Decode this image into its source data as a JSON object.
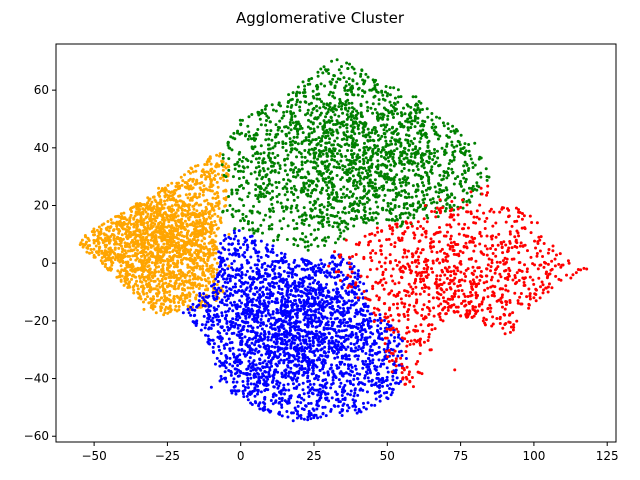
{
  "chart_data": {
    "type": "scatter",
    "title": "Agglomerative Cluster",
    "xlabel": "",
    "ylabel": "",
    "xlim": [
      -63,
      128
    ],
    "ylim": [
      -62,
      76
    ],
    "xticks": [
      "−50",
      "−25",
      "0",
      "25",
      "50",
      "75",
      "100",
      "125"
    ],
    "xtick_values": [
      -50,
      -25,
      0,
      25,
      50,
      75,
      100,
      125
    ],
    "yticks": [
      "−60",
      "−40",
      "−20",
      "0",
      "20",
      "40",
      "60"
    ],
    "ytick_values": [
      -60,
      -40,
      -20,
      0,
      20,
      40,
      60
    ],
    "grid": false,
    "legend": "none",
    "marker_size": 1.5,
    "series": [
      {
        "color": "#ffa500",
        "approx_points": 2000,
        "outline": [
          [
            -55,
            8
          ],
          [
            -50,
            12
          ],
          [
            -40,
            18
          ],
          [
            -30,
            24
          ],
          [
            -20,
            30
          ],
          [
            -15,
            35
          ],
          [
            -10,
            38
          ],
          [
            -5,
            37
          ],
          [
            -3,
            30
          ],
          [
            -4,
            22
          ],
          [
            -8,
            10
          ],
          [
            -8,
            -5
          ],
          [
            -5,
            -12
          ],
          [
            -12,
            -15
          ],
          [
            -20,
            -17
          ],
          [
            -28,
            -19
          ],
          [
            -35,
            -12
          ],
          [
            -45,
            -3
          ],
          [
            -55,
            6
          ]
        ],
        "points": [
          [
            -54,
            8
          ],
          [
            -50,
            7
          ],
          [
            -48,
            10
          ],
          [
            -45,
            5
          ],
          [
            -42,
            9
          ],
          [
            -40,
            2
          ],
          [
            -38,
            12
          ],
          [
            -36,
            -3
          ],
          [
            -35,
            6
          ],
          [
            -33,
            15
          ],
          [
            -32,
            1
          ],
          [
            -30,
            -5
          ],
          [
            -30,
            10
          ],
          [
            -28,
            18
          ],
          [
            -27,
            -12
          ],
          [
            -26,
            4
          ],
          [
            -25,
            -8
          ],
          [
            -24,
            22
          ],
          [
            -23,
            0
          ],
          [
            -22,
            12
          ],
          [
            -21,
            -15
          ],
          [
            -20,
            27
          ],
          [
            -20,
            6
          ],
          [
            -19,
            -4
          ],
          [
            -18,
            17
          ],
          [
            -17,
            33
          ],
          [
            -16,
            -10
          ],
          [
            -15,
            3
          ],
          [
            -14,
            24
          ],
          [
            -13,
            -2
          ],
          [
            -12,
            12
          ],
          [
            -12,
            -14
          ],
          [
            -11,
            36
          ],
          [
            -10,
            7
          ],
          [
            -10,
            20
          ],
          [
            -9,
            -6
          ],
          [
            -8,
            28
          ],
          [
            -8,
            0
          ],
          [
            -7,
            38
          ],
          [
            -7,
            15
          ],
          [
            -6,
            -10
          ],
          [
            -6,
            5
          ],
          [
            -5,
            25
          ],
          [
            -5,
            33
          ],
          [
            -4,
            -1
          ],
          [
            -4,
            10
          ],
          [
            -38,
            -8
          ],
          [
            -33,
            -16
          ],
          [
            -44,
            14
          ],
          [
            -28,
            26
          ]
        ]
      },
      {
        "color": "#0000ff",
        "approx_points": 2600,
        "outline": [
          [
            -8,
            10
          ],
          [
            0,
            12
          ],
          [
            10,
            6
          ],
          [
            25,
            0
          ],
          [
            35,
            5
          ],
          [
            40,
            -2
          ],
          [
            45,
            -15
          ],
          [
            52,
            -22
          ],
          [
            58,
            -30
          ],
          [
            55,
            -42
          ],
          [
            48,
            -50
          ],
          [
            40,
            -52
          ],
          [
            30,
            -54
          ],
          [
            18,
            -55
          ],
          [
            5,
            -50
          ],
          [
            -2,
            -46
          ],
          [
            -8,
            -40
          ],
          [
            -12,
            -25
          ],
          [
            -20,
            -17
          ],
          [
            -14,
            -10
          ],
          [
            -8,
            -5
          ]
        ],
        "points": [
          [
            -18,
            -16
          ],
          [
            -15,
            -20
          ],
          [
            -13,
            -12
          ],
          [
            -12,
            -25
          ],
          [
            -10,
            -43
          ],
          [
            -9,
            -18
          ],
          [
            -8,
            -33
          ],
          [
            -6,
            -8
          ],
          [
            -5,
            -28
          ],
          [
            -3,
            -45
          ],
          [
            -2,
            5
          ],
          [
            -1,
            -15
          ],
          [
            0,
            -38
          ],
          [
            1,
            -22
          ],
          [
            2,
            8
          ],
          [
            3,
            -5
          ],
          [
            4,
            -30
          ],
          [
            5,
            -48
          ],
          [
            6,
            -12
          ],
          [
            7,
            2
          ],
          [
            8,
            -25
          ],
          [
            9,
            -42
          ],
          [
            10,
            -18
          ],
          [
            11,
            6
          ],
          [
            12,
            -35
          ],
          [
            13,
            -8
          ],
          [
            14,
            -50
          ],
          [
            15,
            -28
          ],
          [
            16,
            -15
          ],
          [
            17,
            -2
          ],
          [
            18,
            -40
          ],
          [
            19,
            -22
          ],
          [
            20,
            -53
          ],
          [
            21,
            -10
          ],
          [
            22,
            -32
          ],
          [
            23,
            -45
          ],
          [
            24,
            0
          ],
          [
            25,
            -20
          ],
          [
            26,
            -36
          ],
          [
            27,
            -8
          ],
          [
            28,
            -50
          ],
          [
            29,
            -26
          ],
          [
            30,
            -14
          ],
          [
            31,
            -42
          ],
          [
            32,
            -5
          ],
          [
            33,
            -30
          ],
          [
            34,
            -48
          ],
          [
            35,
            -18
          ],
          [
            36,
            -38
          ],
          [
            37,
            -10
          ],
          [
            38,
            -24
          ],
          [
            39,
            -44
          ],
          [
            40,
            -30
          ],
          [
            41,
            -16
          ],
          [
            42,
            -50
          ],
          [
            43,
            -36
          ],
          [
            44,
            -22
          ],
          [
            45,
            -28
          ],
          [
            46,
            -42
          ],
          [
            47,
            -26
          ],
          [
            48,
            -35
          ],
          [
            50,
            -30
          ],
          [
            49,
            -45
          ],
          [
            52,
            -38
          ],
          [
            54,
            -28
          ]
        ]
      },
      {
        "color": "#008000",
        "approx_points": 2000,
        "outline": [
          [
            -7,
            38
          ],
          [
            -4,
            45
          ],
          [
            0,
            50
          ],
          [
            5,
            53
          ],
          [
            15,
            58
          ],
          [
            25,
            66
          ],
          [
            32,
            72
          ],
          [
            40,
            68
          ],
          [
            50,
            62
          ],
          [
            60,
            58
          ],
          [
            70,
            50
          ],
          [
            80,
            42
          ],
          [
            85,
            30
          ],
          [
            80,
            20
          ],
          [
            70,
            16
          ],
          [
            55,
            12
          ],
          [
            40,
            14
          ],
          [
            35,
            8
          ],
          [
            25,
            4
          ],
          [
            15,
            6
          ],
          [
            5,
            10
          ],
          [
            0,
            12
          ],
          [
            -6,
            15
          ],
          [
            -7,
            25
          ]
        ],
        "points": [
          [
            -6,
            18
          ],
          [
            -5,
            30
          ],
          [
            -4,
            40
          ],
          [
            -3,
            24
          ],
          [
            -2,
            12
          ],
          [
            -1,
            35
          ],
          [
            0,
            48
          ],
          [
            1,
            20
          ],
          [
            2,
            28
          ],
          [
            3,
            44
          ],
          [
            4,
            14
          ],
          [
            5,
            38
          ],
          [
            6,
            52
          ],
          [
            7,
            24
          ],
          [
            8,
            32
          ],
          [
            9,
            46
          ],
          [
            10,
            18
          ],
          [
            11,
            40
          ],
          [
            12,
            28
          ],
          [
            13,
            55
          ],
          [
            14,
            12
          ],
          [
            15,
            36
          ],
          [
            16,
            22
          ],
          [
            17,
            48
          ],
          [
            18,
            30
          ],
          [
            19,
            58
          ],
          [
            20,
            16
          ],
          [
            21,
            42
          ],
          [
            22,
            26
          ],
          [
            23,
            62
          ],
          [
            24,
            10
          ],
          [
            25,
            35
          ],
          [
            26,
            50
          ],
          [
            27,
            20
          ],
          [
            28,
            66
          ],
          [
            29,
            44
          ],
          [
            30,
            28
          ],
          [
            31,
            70
          ],
          [
            32,
            14
          ],
          [
            33,
            38
          ],
          [
            34,
            56
          ],
          [
            35,
            24
          ],
          [
            36,
            48
          ],
          [
            37,
            64
          ],
          [
            38,
            32
          ],
          [
            39,
            18
          ],
          [
            40,
            52
          ],
          [
            42,
            40
          ],
          [
            44,
            60
          ],
          [
            45,
            26
          ],
          [
            46,
            46
          ],
          [
            48,
            34
          ],
          [
            50,
            58
          ],
          [
            52,
            22
          ],
          [
            54,
            42
          ],
          [
            56,
            30
          ],
          [
            58,
            52
          ],
          [
            60,
            18
          ],
          [
            62,
            38
          ],
          [
            64,
            26
          ],
          [
            66,
            46
          ],
          [
            68,
            34
          ],
          [
            70,
            22
          ],
          [
            72,
            42
          ],
          [
            74,
            30
          ],
          [
            76,
            38
          ],
          [
            78,
            26
          ],
          [
            80,
            34
          ],
          [
            82,
            24
          ],
          [
            84,
            30
          ]
        ]
      },
      {
        "color": "#ff0000",
        "approx_points": 1000,
        "outline": [
          [
            30,
            0
          ],
          [
            38,
            6
          ],
          [
            45,
            12
          ],
          [
            55,
            14
          ],
          [
            65,
            18
          ],
          [
            75,
            24
          ],
          [
            85,
            28
          ],
          [
            92,
            22
          ],
          [
            100,
            16
          ],
          [
            105,
            10
          ],
          [
            110,
            2
          ],
          [
            118,
            -2
          ],
          [
            108,
            -8
          ],
          [
            98,
            -16
          ],
          [
            92,
            -26
          ],
          [
            80,
            -20
          ],
          [
            72,
            -18
          ],
          [
            66,
            -24
          ],
          [
            64,
            -36
          ],
          [
            58,
            -46
          ],
          [
            52,
            -40
          ],
          [
            50,
            -32
          ],
          [
            48,
            -26
          ],
          [
            42,
            -15
          ],
          [
            36,
            -8
          ]
        ],
        "points": [
          [
            30,
            -1
          ],
          [
            32,
            4
          ],
          [
            34,
            -6
          ],
          [
            36,
            8
          ],
          [
            38,
            -3
          ],
          [
            40,
            -12
          ],
          [
            42,
            2
          ],
          [
            44,
            10
          ],
          [
            45,
            -8
          ],
          [
            46,
            -18
          ],
          [
            48,
            6
          ],
          [
            49,
            -14
          ],
          [
            50,
            -26
          ],
          [
            51,
            12
          ],
          [
            52,
            -2
          ],
          [
            53,
            -34
          ],
          [
            54,
            -20
          ],
          [
            55,
            8
          ],
          [
            56,
            -42
          ],
          [
            57,
            -10
          ],
          [
            58,
            14
          ],
          [
            59,
            -28
          ],
          [
            60,
            4
          ],
          [
            61,
            -38
          ],
          [
            62,
            -16
          ],
          [
            63,
            20
          ],
          [
            64,
            -4
          ],
          [
            65,
            -30
          ],
          [
            66,
            10
          ],
          [
            67,
            -12
          ],
          [
            68,
            22
          ],
          [
            69,
            -20
          ],
          [
            70,
            2
          ],
          [
            72,
            16
          ],
          [
            73,
            -37
          ],
          [
            74,
            -8
          ],
          [
            76,
            12
          ],
          [
            78,
            -14
          ],
          [
            80,
            6
          ],
          [
            82,
            26
          ],
          [
            84,
            -2
          ],
          [
            85,
            18
          ],
          [
            86,
            -10
          ],
          [
            88,
            10
          ],
          [
            90,
            -18
          ],
          [
            91,
            4
          ],
          [
            92,
            -24
          ],
          [
            94,
            8
          ],
          [
            95,
            -6
          ],
          [
            97,
            12
          ],
          [
            99,
            2
          ],
          [
            100,
            -12
          ],
          [
            102,
            8
          ],
          [
            104,
            0
          ],
          [
            112,
            0
          ],
          [
            118,
            -2
          ]
        ]
      }
    ]
  }
}
